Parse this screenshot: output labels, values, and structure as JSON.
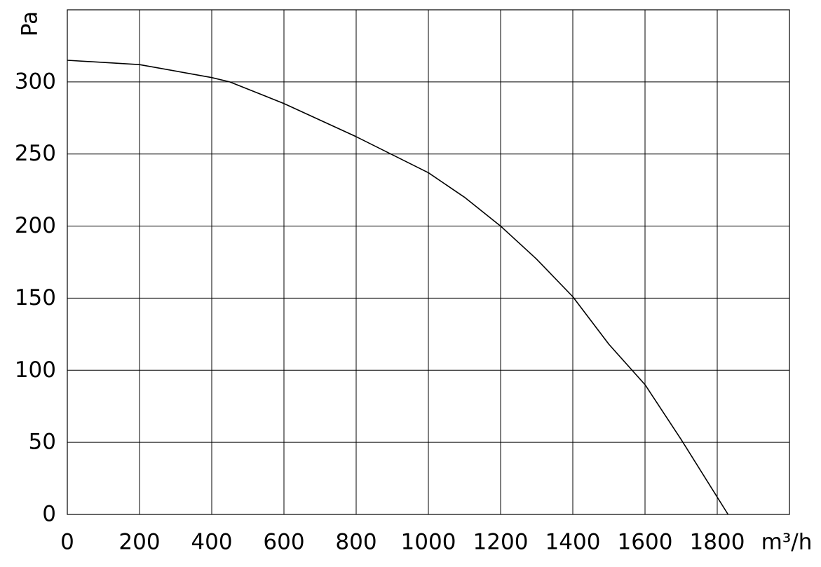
{
  "chart_data": {
    "type": "line",
    "x_label": "m³/h",
    "y_label": "Pa",
    "x": [
      0,
      200,
      400,
      450,
      600,
      800,
      1000,
      1100,
      1200,
      1300,
      1400,
      1500,
      1600,
      1700,
      1800,
      1830
    ],
    "series": [
      {
        "color": "#000000",
        "values": [
          315,
          312,
          303,
          300,
          285,
          262,
          237,
          220,
          200,
          177,
          151,
          118,
          90,
          52,
          12,
          0
        ]
      }
    ],
    "xlim": [
      0,
      2000
    ],
    "xticks": [
      0,
      200,
      400,
      600,
      800,
      1000,
      1200,
      1400,
      1600,
      1800
    ],
    "ylim": [
      0,
      350
    ],
    "yticks": [
      0,
      50,
      100,
      150,
      200,
      250,
      300
    ],
    "grid": true
  }
}
